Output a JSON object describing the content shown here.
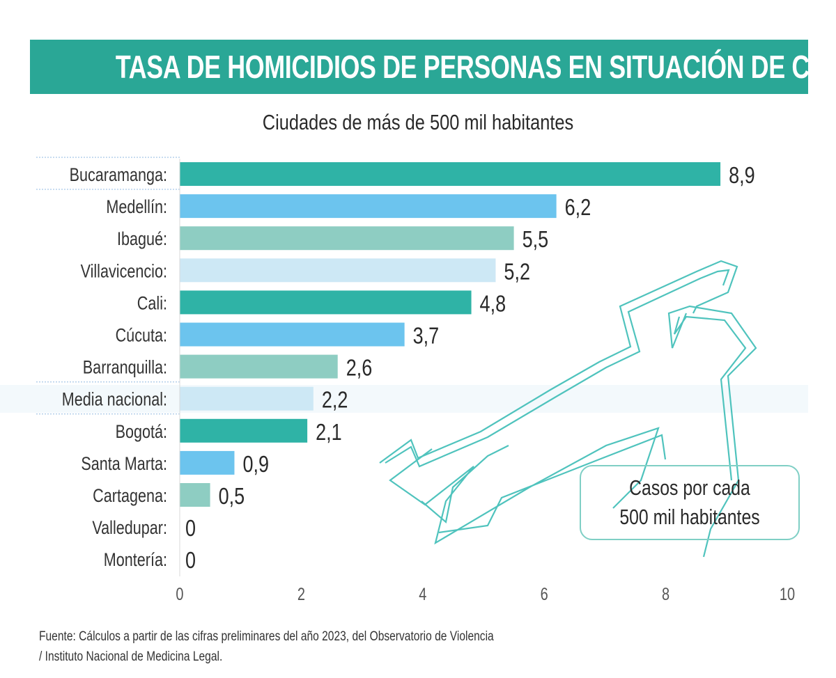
{
  "title": "TASA DE HOMICIDIOS DE PERSONAS EN SITUACIÓN DE CALLE",
  "subtitle": "Ciudades de más de 500 mil habitantes",
  "legend": {
    "line1": "Casos por cada",
    "line2": "500 mil habitantes"
  },
  "source": {
    "line1": "Fuente: Cálculos a partir de las cifras preliminares del año 2023, del Observatorio de Violencia",
    "line2": "/ Instituto Nacional de Medicina Legal."
  },
  "colors": {
    "title_bar": "#2aa796",
    "teal": "#2fb3a6",
    "blue": "#6cc4ee",
    "mint": "#8ecdc2",
    "light_blue": "#cde8f5",
    "outline": "#4fc3bd"
  },
  "chart_data": {
    "type": "bar",
    "orientation": "horizontal",
    "title": "TASA DE HOMICIDIOS DE PERSONAS EN SITUACIÓN DE CALLE",
    "subtitle": "Ciudades de más de 500 mil habitantes",
    "categories": [
      "Bucaramanga:",
      "Medellín:",
      "Ibagué:",
      "Villavicencio:",
      "Cali:",
      "Cúcuta:",
      "Barranquilla:",
      "Media nacional:",
      "Bogotá:",
      "Santa Marta:",
      "Cartagena:",
      "Valledupar:",
      "Montería:"
    ],
    "values": [
      8.9,
      6.2,
      5.5,
      5.2,
      4.8,
      3.7,
      2.6,
      2.2,
      2.1,
      0.9,
      0.5,
      0,
      0
    ],
    "value_labels": [
      "8,9",
      "6,2",
      "5,5",
      "5,2",
      "4,8",
      "3,7",
      "2,6",
      "2,2",
      "2,1",
      "0,9",
      "0,5",
      "0",
      "0"
    ],
    "highlighted": [
      "Bucaramanga:",
      "Media nacional:"
    ],
    "xlim": [
      0,
      10
    ],
    "xticks": [
      "0",
      "2",
      "4",
      "6",
      "8",
      "10"
    ],
    "xlabel": "",
    "ylabel": "",
    "grid": false
  }
}
